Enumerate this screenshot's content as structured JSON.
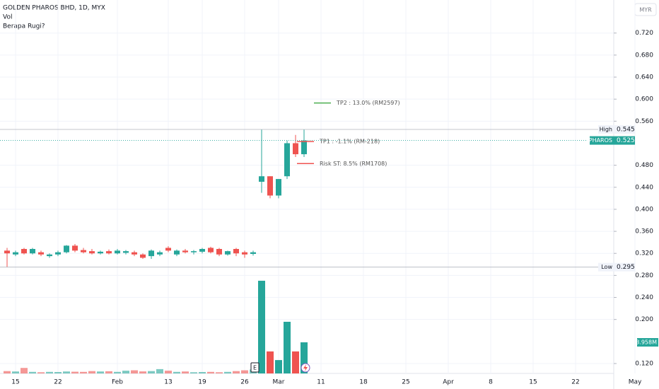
{
  "chart_data": {
    "type": "candlestick",
    "title": "GOLDEN PHAROS BHD, 1D, MYX",
    "indicators": [
      "Vol",
      "Berapa Rugi?"
    ],
    "currency": "MYR",
    "categories": [
      null,
      "15",
      null,
      null,
      null,
      null,
      "22",
      null,
      null,
      null,
      null,
      null,
      null,
      "Feb",
      null,
      null,
      null,
      null,
      null,
      "13",
      null,
      null,
      null,
      "19",
      null,
      null,
      null,
      null,
      "26",
      null,
      null,
      null,
      "Mar",
      null,
      null,
      null,
      null,
      "11",
      null,
      null,
      null,
      null,
      "18",
      null,
      null,
      null,
      null,
      "25",
      null,
      null,
      null,
      null,
      "Apr",
      null,
      null,
      null,
      null,
      "8",
      null,
      null,
      null,
      null,
      "15",
      null,
      null,
      null,
      null,
      "22",
      null,
      null,
      null,
      null,
      null,
      null,
      "May"
    ],
    "open": [
      0.325,
      0.318,
      0.328,
      0.32,
      0.322,
      0.315,
      0.318,
      0.322,
      0.334,
      0.326,
      0.324,
      0.32,
      0.324,
      0.32,
      0.321,
      0.322,
      0.318,
      0.315,
      0.318,
      0.33,
      0.318,
      0.325,
      0.322,
      0.323,
      0.33,
      0.328,
      0.318,
      0.328,
      0.322,
      0.319,
      0.45,
      0.46,
      0.425,
      0.46,
      0.52,
      0.5,
      null,
      null,
      null,
      null,
      null,
      null,
      null,
      null,
      null,
      null,
      null,
      null,
      null,
      null,
      null,
      null,
      null,
      null,
      null,
      null,
      null,
      null,
      null,
      null,
      null,
      null,
      null,
      null,
      null,
      null,
      null,
      null,
      null,
      null,
      null,
      null,
      null,
      null,
      null
    ],
    "high": [
      0.33,
      0.325,
      0.33,
      0.33,
      0.325,
      0.32,
      0.325,
      0.335,
      0.337,
      0.33,
      0.328,
      0.325,
      0.327,
      0.328,
      0.326,
      0.325,
      0.32,
      0.327,
      0.325,
      0.333,
      0.327,
      0.328,
      0.326,
      0.33,
      0.332,
      0.33,
      0.325,
      0.33,
      0.325,
      0.325,
      0.545,
      0.46,
      0.455,
      0.525,
      0.535,
      0.545,
      null,
      null,
      null,
      null,
      null,
      null,
      null,
      null,
      null,
      null,
      null,
      null,
      null,
      null,
      null,
      null,
      null,
      null,
      null,
      null,
      null,
      null,
      null,
      null,
      null,
      null,
      null,
      null,
      null,
      null,
      null,
      null,
      null,
      null,
      null,
      null,
      null,
      null,
      null
    ],
    "low": [
      0.295,
      0.315,
      0.318,
      0.318,
      0.315,
      0.312,
      0.315,
      0.32,
      0.322,
      0.32,
      0.318,
      0.318,
      0.318,
      0.318,
      0.318,
      0.315,
      0.31,
      0.31,
      0.315,
      0.322,
      0.315,
      0.32,
      0.318,
      0.32,
      0.32,
      0.315,
      0.316,
      0.315,
      0.312,
      0.316,
      0.43,
      0.42,
      0.42,
      0.455,
      0.495,
      0.495,
      null,
      null,
      null,
      null,
      null,
      null,
      null,
      null,
      null,
      null,
      null,
      null,
      null,
      null,
      null,
      null,
      null,
      null,
      null,
      null,
      null,
      null,
      null,
      null,
      null,
      null,
      null,
      null,
      null,
      null,
      null,
      null,
      null,
      null,
      null,
      null,
      null,
      null,
      null
    ],
    "close": [
      0.32,
      0.322,
      0.32,
      0.328,
      0.318,
      0.318,
      0.322,
      0.334,
      0.325,
      0.322,
      0.32,
      0.323,
      0.32,
      0.325,
      0.324,
      0.318,
      0.312,
      0.325,
      0.322,
      0.325,
      0.325,
      0.322,
      0.324,
      0.328,
      0.322,
      0.318,
      0.324,
      0.32,
      0.318,
      0.322,
      0.46,
      0.425,
      0.455,
      0.52,
      0.5,
      0.525,
      null,
      null,
      null,
      null,
      null,
      null,
      null,
      null,
      null,
      null,
      null,
      null,
      null,
      null,
      null,
      null,
      null,
      null,
      null,
      null,
      null,
      null,
      null,
      null,
      null,
      null,
      null,
      null,
      null,
      null,
      null,
      null,
      null,
      null,
      null,
      null,
      null,
      null,
      null
    ],
    "volume": {
      "values": [
        300000,
        250000,
        700000,
        200000,
        150000,
        200000,
        180000,
        250000,
        220000,
        200000,
        300000,
        250000,
        280000,
        200000,
        350000,
        400000,
        260000,
        300000,
        550000,
        350000,
        200000,
        250000,
        150000,
        180000,
        200000,
        150000,
        200000,
        300000,
        400000,
        500000,
        11790000,
        2800000,
        1700000,
        6570000,
        2800000,
        3958000,
        null,
        null,
        null,
        null,
        null,
        null,
        null,
        null,
        null,
        null,
        null,
        null,
        null,
        null,
        null,
        null,
        null,
        null,
        null,
        null,
        null,
        null,
        null,
        null,
        null,
        null,
        null,
        null,
        null,
        null,
        null,
        null,
        null,
        null,
        null,
        null,
        null,
        null,
        null
      ],
      "last_label": "3.958M"
    },
    "up_color": "#26a69a",
    "down_color": "#ef5350",
    "ylim": [
      0.102,
      0.78
    ],
    "yticks": [
      {
        "value": 0.72,
        "label": "0.720"
      },
      {
        "value": 0.68,
        "label": "0.680"
      },
      {
        "value": 0.64,
        "label": "0.640"
      },
      {
        "value": 0.6,
        "label": "0.600"
      },
      {
        "value": 0.56,
        "label": "0.560"
      },
      {
        "value": 0.48,
        "label": "0.480"
      },
      {
        "value": 0.44,
        "label": "0.440"
      },
      {
        "value": 0.4,
        "label": "0.400"
      },
      {
        "value": 0.36,
        "label": "0.360"
      },
      {
        "value": 0.32,
        "label": "0.320"
      },
      {
        "value": 0.28,
        "label": "0.280"
      },
      {
        "value": 0.24,
        "label": "0.240"
      },
      {
        "value": 0.2,
        "label": "0.200"
      },
      {
        "value": 0.12,
        "label": "0.120"
      }
    ],
    "grid": true,
    "price_lines": [
      {
        "label": "High",
        "value": 0.545
      },
      {
        "label": "GPHAROS",
        "value": 0.525
      },
      {
        "label": "Low",
        "value": 0.295
      }
    ],
    "annotations": [
      {
        "text": "TP2 : 13.0% (RM2597)",
        "level": 0.593,
        "color": "#4caf50"
      },
      {
        "text": "TP1 : -1.1% (RM-218)",
        "level": 0.523,
        "color": "#ef5350"
      },
      {
        "text": "Risk ST: 8.5% (RM1708)",
        "level": 0.483,
        "color": "#ef5350"
      }
    ],
    "earnings_marker": "E"
  }
}
